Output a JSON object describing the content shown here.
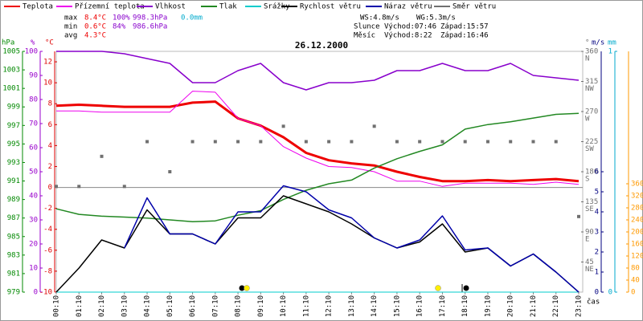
{
  "chart_data": {
    "type": "line",
    "title": "26.12.2000",
    "x_label": "čas",
    "x": [
      "00:10",
      "01:10",
      "02:10",
      "03:10",
      "04:10",
      "05:10",
      "06:10",
      "07:10",
      "08:10",
      "09:10",
      "10:10",
      "11:10",
      "12:10",
      "13:10",
      "14:10",
      "15:10",
      "16:10",
      "17:10",
      "18:10",
      "19:10",
      "20:10",
      "21:10",
      "22:10",
      "23:10"
    ],
    "axes": {
      "hpa": {
        "label": "hPa",
        "color": "#008800",
        "lim": [
          979,
          1005
        ],
        "ticks": [
          979,
          981,
          983,
          985,
          987,
          989,
          991,
          993,
          995,
          997,
          999,
          1001,
          1003,
          1005
        ]
      },
      "pct": {
        "label": "%",
        "color": "#9900cc",
        "lim": [
          0,
          100
        ],
        "ticks": [
          0,
          10,
          20,
          30,
          40,
          50,
          60,
          70,
          80,
          90,
          100
        ]
      },
      "temp": {
        "label": "°C",
        "color": "#dd0000",
        "lim": [
          -10,
          13
        ],
        "ticks": [
          -10,
          -8,
          -6,
          -4,
          -2,
          0,
          2,
          4,
          6,
          8,
          10,
          12
        ]
      },
      "deg": {
        "label": "°",
        "color": "#707070",
        "lim": [
          0,
          360
        ],
        "ticks": [
          45,
          90,
          135,
          180,
          225,
          270,
          315,
          360
        ],
        "compass": [
          "NE",
          "E",
          "SE",
          "S",
          "SW",
          "W",
          "NW",
          "N"
        ]
      },
      "ms": {
        "label": "m/s",
        "color": "#000080",
        "lim": [
          0,
          12
        ],
        "ticks": [
          0,
          1,
          2,
          3,
          4,
          5,
          6
        ]
      },
      "mm": {
        "label": "mm",
        "color": "#00aacc",
        "lim": [
          0,
          1
        ],
        "ticks": [
          0,
          1
        ]
      },
      "sun": {
        "color": "#ff9900",
        "lim": [
          0,
          800
        ],
        "ticks": [
          0,
          40,
          80,
          120,
          160,
          200,
          240,
          280,
          320,
          360
        ]
      }
    },
    "series": [
      {
        "name": "Teplota",
        "color": "#ee0000",
        "axis": "temp",
        "width": 3,
        "values": [
          7.8,
          7.9,
          7.8,
          7.7,
          7.7,
          7.7,
          8.1,
          8.2,
          6.6,
          5.9,
          4.8,
          3.3,
          2.6,
          2.3,
          2.1,
          1.5,
          1.0,
          0.6,
          0.6,
          0.7,
          0.6,
          0.7,
          0.8,
          0.6
        ]
      },
      {
        "name": "Přízemní teplota",
        "color": "#ee00ee",
        "axis": "temp",
        "width": 1,
        "values": [
          7.3,
          7.3,
          7.2,
          7.2,
          7.2,
          7.2,
          9.2,
          9.1,
          6.6,
          5.9,
          3.9,
          2.8,
          2.0,
          1.9,
          1.5,
          0.6,
          0.6,
          0.1,
          0.4,
          0.4,
          0.4,
          0.3,
          0.5,
          0.3
        ]
      },
      {
        "name": "Vlhkost",
        "color": "#8800cc",
        "axis": "pct",
        "width": 1.5,
        "values": [
          100,
          100,
          100,
          99,
          97,
          95,
          87,
          87,
          92,
          95,
          87,
          84,
          87,
          87,
          88,
          92,
          92,
          95,
          92,
          92,
          95,
          90,
          89,
          88
        ]
      },
      {
        "name": "Tlak",
        "color": "#228822",
        "axis": "hpa",
        "width": 1.5,
        "values": [
          988.0,
          987.4,
          987.2,
          987.1,
          987.0,
          986.8,
          986.6,
          986.7,
          987.3,
          987.8,
          989.0,
          990.0,
          990.7,
          991.1,
          992.4,
          993.4,
          994.2,
          994.9,
          996.6,
          997.1,
          997.4,
          997.8,
          998.2,
          998.3
        ]
      },
      {
        "name": "Srážky",
        "color": "#00cccc",
        "axis": "mm",
        "width": 1,
        "values": [
          0,
          0,
          0,
          0,
          0,
          0,
          0,
          0,
          0,
          0,
          0,
          0,
          0,
          0,
          0,
          0,
          0,
          0,
          0,
          0,
          0,
          0,
          0,
          0
        ]
      },
      {
        "name": "Rychlost větru",
        "color": "#000000",
        "axis": "ms",
        "width": 1.5,
        "values": [
          0,
          1.2,
          2.6,
          2.2,
          4.1,
          2.9,
          2.9,
          2.4,
          3.7,
          3.7,
          4.8,
          4.4,
          4.0,
          3.4,
          2.7,
          2.2,
          2.5,
          3.4,
          2.0,
          2.2,
          1.3,
          1.9,
          1.0,
          0
        ]
      },
      {
        "name": "Náraz větru",
        "color": "#0000aa",
        "axis": "ms",
        "width": 1.5,
        "values": [
          null,
          null,
          null,
          2.2,
          4.7,
          2.9,
          2.9,
          2.4,
          4.0,
          4.0,
          5.3,
          5.0,
          4.1,
          3.7,
          2.7,
          2.2,
          2.6,
          3.8,
          2.1,
          2.2,
          1.3,
          1.9,
          1.0,
          0
        ]
      },
      {
        "name": "Směr větru",
        "color": "#707070",
        "axis": "deg",
        "marker": "square",
        "values": [
          158,
          158,
          203,
          158,
          225,
          180,
          225,
          225,
          225,
          225,
          248,
          225,
          225,
          225,
          248,
          225,
          225,
          225,
          225,
          225,
          225,
          225,
          225,
          113
        ]
      }
    ],
    "stats": [
      [
        "max",
        "8.4°C",
        "100%",
        "998.3hPa",
        "0.0mm"
      ],
      [
        "min",
        "0.6°C",
        "84%",
        "986.6hPa"
      ],
      [
        "avg",
        "4.3°C"
      ]
    ],
    "wind": [
      "WS:4.8m/s",
      "WG:5.3m/s"
    ],
    "sun_times": [
      "Slunce",
      "Východ:07:46",
      "Západ:15:57"
    ],
    "moon_times": [
      "Měsíc",
      "Východ:8:22",
      "Západ:16:46"
    ]
  }
}
